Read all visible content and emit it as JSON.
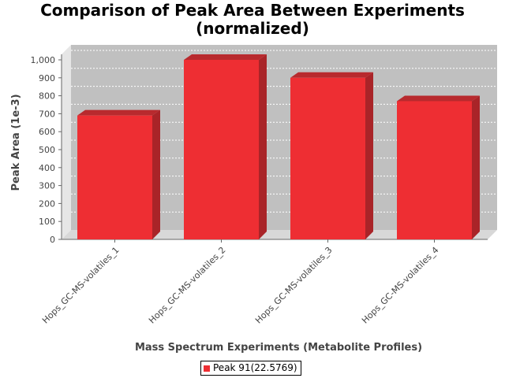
{
  "title_lines": [
    "Comparison of Peak Area Between Experiments",
    "(normalized)"
  ],
  "colors": {
    "bar_front": "#ee2e33",
    "bar_top": "#b82a2e",
    "bar_side": "#a92428",
    "plot_bg": "#c0c0c0",
    "floor": "#d8d8d8"
  },
  "legend": {
    "label": "Peak 91(22.5769)"
  },
  "chart_data": {
    "type": "bar",
    "title": "Comparison of Peak Area Between Experiments (normalized)",
    "xlabel": "Mass Spectrum Experiments (Metabolite Profiles)",
    "ylabel": "Peak Area (1e-3)",
    "categories": [
      "Hops_GC-MS-volatiles_1",
      "Hops_GC-MS-volatiles_2",
      "Hops_GC-MS-volatiles_3",
      "Hops_GC-MS-volatiles_4"
    ],
    "series": [
      {
        "name": "Peak 91(22.5769)",
        "values": [
          690,
          1000,
          900,
          770
        ]
      }
    ],
    "ylim": [
      0,
      1050
    ],
    "yticks": [
      0,
      100,
      200,
      300,
      400,
      500,
      600,
      700,
      800,
      900,
      1000
    ],
    "ytick_labels": [
      "0",
      "100",
      "200",
      "300",
      "400",
      "500",
      "600",
      "700",
      "800",
      "900",
      "1,000"
    ],
    "grid": true,
    "legend_position": "bottom"
  }
}
